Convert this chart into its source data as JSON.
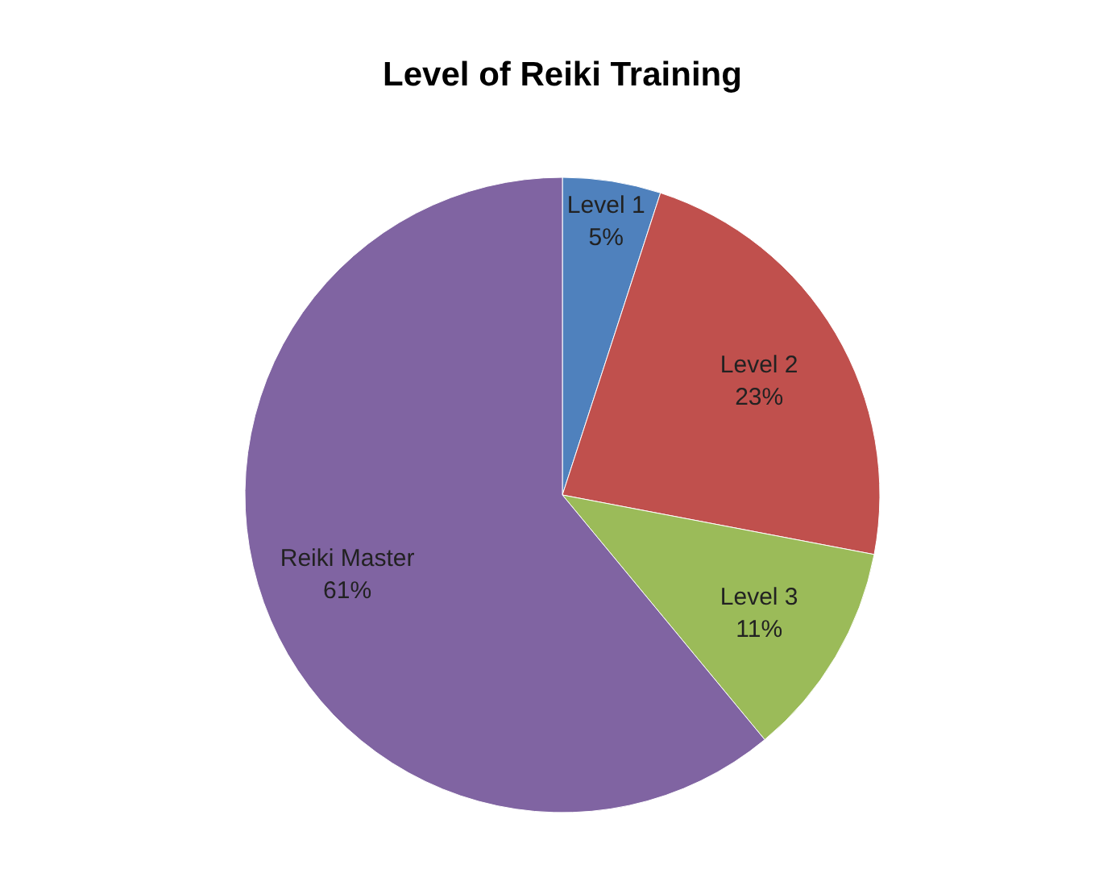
{
  "chart_data": {
    "type": "pie",
    "title": "Level of Reiki Training",
    "categories": [
      "Level 1",
      "Level 2",
      "Level 3",
      "Reiki Master"
    ],
    "values": [
      5,
      23,
      11,
      61
    ],
    "value_labels": [
      "5%",
      "23%",
      "11%",
      "61%"
    ],
    "colors": [
      "#4f81bd",
      "#c0504d",
      "#9bbb59",
      "#8064a2"
    ],
    "legend": false
  }
}
